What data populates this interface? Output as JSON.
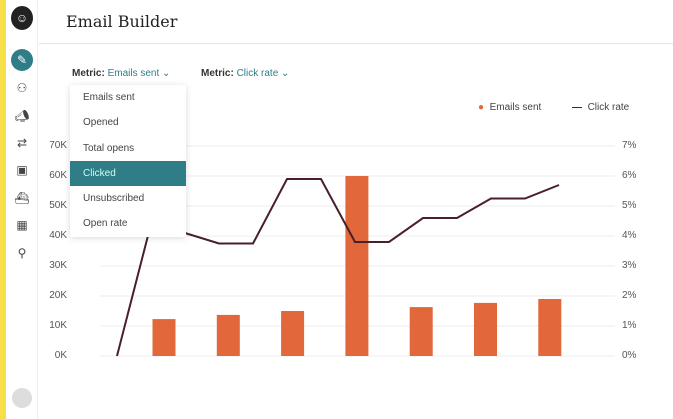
{
  "header": {
    "title": "Email Builder"
  },
  "sidebar": {
    "icons": [
      "mailchimp-logo",
      "pencil-icon",
      "audience-icon",
      "campaign-icon",
      "automation-icon",
      "content-icon",
      "integrations-icon",
      "dashboard-icon",
      "search-icon"
    ]
  },
  "metric_left": {
    "label": "Metric:",
    "value": "Emails sent"
  },
  "metric_right": {
    "label": "Metric:",
    "value": "Click rate"
  },
  "dropdown": {
    "options": [
      "Emails sent",
      "Opened",
      "Total opens",
      "Clicked",
      "Unsubscribed",
      "Open rate"
    ],
    "highlighted": "Clicked"
  },
  "colors": {
    "accent": "#2e7d87",
    "bar": "#e2673a",
    "line": "#4a1f2a"
  },
  "chart_data": {
    "type": "bar+line",
    "legend": [
      "Emails sent",
      "Click rate"
    ],
    "legend_position": "top-right",
    "grid": true,
    "left_axis": {
      "ylim": [
        0,
        70000
      ],
      "ticks": [
        "0K",
        "10K",
        "20K",
        "30K",
        "40K",
        "50K",
        "60K",
        "70K"
      ]
    },
    "right_axis": {
      "ylim": [
        0,
        7
      ],
      "ticks": [
        "0%",
        "1%",
        "2%",
        "3%",
        "4%",
        "5%",
        "6%",
        "7%"
      ]
    },
    "bars": {
      "name": "Emails sent",
      "values": [
        12300,
        13700,
        15000,
        60000,
        16300,
        17700,
        19000
      ]
    },
    "line": {
      "name": "Click rate",
      "values": [
        0,
        4.4,
        4.1,
        3.75,
        3.75,
        5.9,
        5.9,
        3.8,
        3.8,
        4.6,
        4.6,
        5.25,
        5.25,
        5.7
      ]
    }
  }
}
